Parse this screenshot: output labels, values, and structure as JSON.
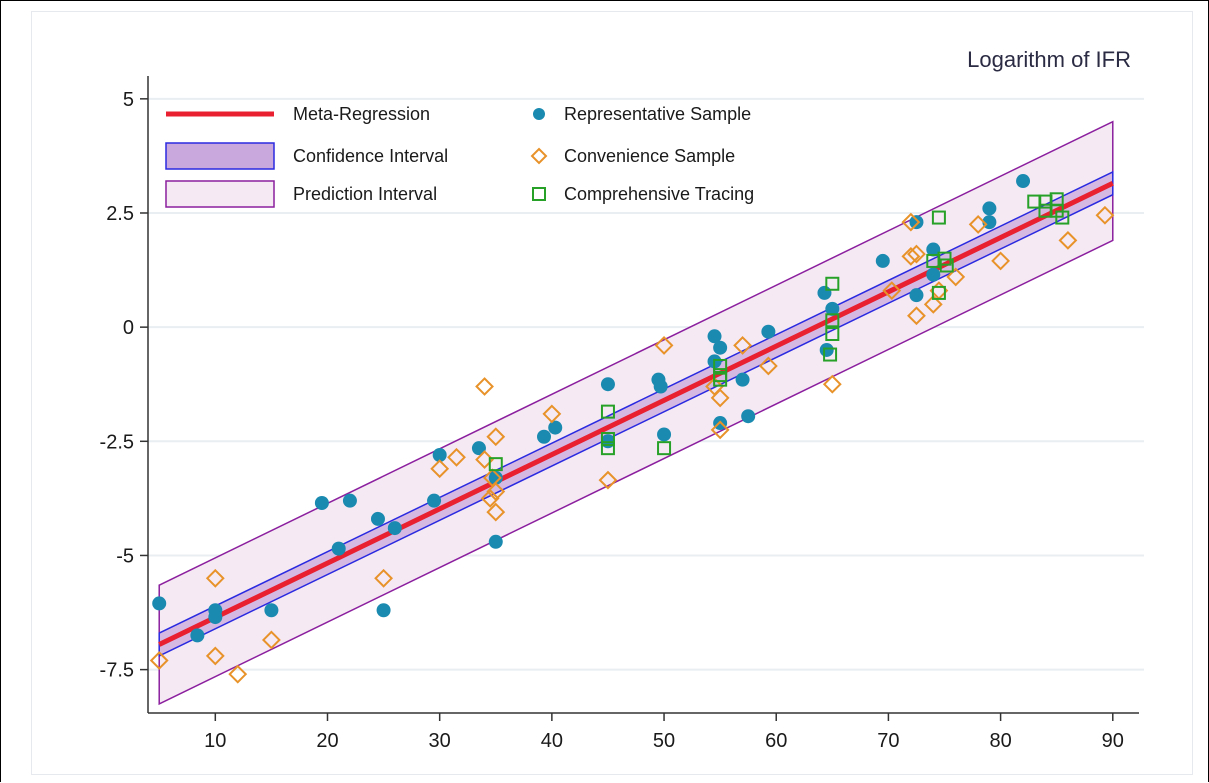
{
  "colors": {
    "regression_line": "#e8202f",
    "ci_fill": "#c9a8de",
    "ci_border": "#2a2ae0",
    "pi_fill": "#f5e9f4",
    "pi_border": "#8b1f9e",
    "representative": "#1a8ab0",
    "convenience": "#e8922a",
    "comprehensive": "#28a128",
    "grid": "#e8eef2",
    "axis": "#333333"
  },
  "chart_data": {
    "type": "scatter",
    "title": "Logarithm of IFR",
    "xlabel": "",
    "ylabel": "",
    "xlim": [
      4,
      91
    ],
    "ylim": [
      -8.45,
      5.5
    ],
    "x_ticks": [
      10,
      20,
      30,
      40,
      50,
      60,
      70,
      80,
      90
    ],
    "y_ticks": [
      5,
      2.5,
      0,
      -2.5,
      -5,
      -7.5
    ],
    "y_tick_labels": [
      "5",
      "2.5",
      "0",
      "-2.5",
      "-5",
      "-7.5"
    ],
    "grid": "horizontal",
    "legend": {
      "placement": "top-left",
      "entries": [
        {
          "label": "Meta-Regression",
          "kind": "line"
        },
        {
          "label": "Confidence Interval",
          "kind": "ci"
        },
        {
          "label": "Prediction Interval",
          "kind": "pi"
        },
        {
          "label": "Representative Sample",
          "kind": "circle"
        },
        {
          "label": "Convenience Sample",
          "kind": "diamond"
        },
        {
          "label": "Comprehensive Tracing",
          "kind": "square"
        }
      ]
    },
    "regression": {
      "x": [
        5,
        90
      ],
      "y": [
        -6.95,
        3.15
      ],
      "ci_upper": [
        -6.7,
        3.4
      ],
      "ci_lower": [
        -7.2,
        2.9
      ],
      "pi_upper": [
        -5.65,
        4.5
      ],
      "pi_lower": [
        -8.25,
        1.9
      ]
    },
    "series": [
      {
        "name": "Representative Sample",
        "marker": "circle",
        "points": [
          [
            5,
            -6.05
          ],
          [
            8.4,
            -6.75
          ],
          [
            10,
            -6.2
          ],
          [
            10,
            -6.35
          ],
          [
            15,
            -6.2
          ],
          [
            19.5,
            -3.85
          ],
          [
            21,
            -4.85
          ],
          [
            22,
            -3.8
          ],
          [
            24.5,
            -4.2
          ],
          [
            25,
            -6.2
          ],
          [
            26,
            -4.4
          ],
          [
            29.5,
            -3.8
          ],
          [
            30,
            -2.8
          ],
          [
            33.5,
            -2.65
          ],
          [
            35,
            -3.3
          ],
          [
            35,
            -4.7
          ],
          [
            39.3,
            -2.4
          ],
          [
            40.3,
            -2.2
          ],
          [
            45,
            -1.25
          ],
          [
            45,
            -2.5
          ],
          [
            49.5,
            -1.15
          ],
          [
            49.7,
            -1.3
          ],
          [
            50,
            -2.35
          ],
          [
            54.5,
            -0.2
          ],
          [
            55,
            -0.45
          ],
          [
            54.5,
            -0.75
          ],
          [
            55,
            -2.1
          ],
          [
            57,
            -1.15
          ],
          [
            57.5,
            -1.95
          ],
          [
            59.3,
            -0.1
          ],
          [
            64.3,
            0.75
          ],
          [
            64.5,
            -0.5
          ],
          [
            65,
            0.4
          ],
          [
            69.5,
            1.45
          ],
          [
            72.5,
            2.3
          ],
          [
            72.5,
            0.7
          ],
          [
            74,
            1.7
          ],
          [
            74,
            1.15
          ],
          [
            79,
            2.6
          ],
          [
            79,
            2.3
          ],
          [
            82,
            3.2
          ]
        ]
      },
      {
        "name": "Convenience Sample",
        "marker": "diamond",
        "points": [
          [
            5,
            -7.3
          ],
          [
            10,
            -5.5
          ],
          [
            10,
            -7.2
          ],
          [
            12,
            -7.6
          ],
          [
            15,
            -6.85
          ],
          [
            25,
            -5.5
          ],
          [
            30,
            -3.1
          ],
          [
            31.5,
            -2.85
          ],
          [
            34,
            -1.3
          ],
          [
            34,
            -2.9
          ],
          [
            34.5,
            -3.75
          ],
          [
            35,
            -2.4
          ],
          [
            35,
            -3.6
          ],
          [
            35,
            -4.05
          ],
          [
            34.7,
            -3.3
          ],
          [
            40,
            -1.9
          ],
          [
            45,
            -3.35
          ],
          [
            50,
            -0.4
          ],
          [
            54.5,
            -1.3
          ],
          [
            55,
            -1.55
          ],
          [
            55,
            -2.25
          ],
          [
            57,
            -0.4
          ],
          [
            59.3,
            -0.85
          ],
          [
            65,
            -1.25
          ],
          [
            70.3,
            0.8
          ],
          [
            72,
            2.3
          ],
          [
            72,
            1.55
          ],
          [
            72.5,
            1.6
          ],
          [
            72.5,
            0.25
          ],
          [
            74,
            0.5
          ],
          [
            74.5,
            0.8
          ],
          [
            76,
            1.1
          ],
          [
            78,
            2.25
          ],
          [
            80,
            1.45
          ],
          [
            86,
            1.9
          ],
          [
            89.3,
            2.45
          ]
        ]
      },
      {
        "name": "Comprehensive Tracing",
        "marker": "square",
        "points": [
          [
            35,
            -3.0
          ],
          [
            45,
            -1.85
          ],
          [
            45,
            -2.45
          ],
          [
            45,
            -2.65
          ],
          [
            50,
            -2.65
          ],
          [
            55,
            -0.85
          ],
          [
            55,
            -1.05
          ],
          [
            55,
            -1.15
          ],
          [
            65,
            0.95
          ],
          [
            65,
            0.15
          ],
          [
            65,
            -0.15
          ],
          [
            64.8,
            -0.6
          ],
          [
            74,
            1.45
          ],
          [
            74.5,
            2.4
          ],
          [
            74.5,
            0.75
          ],
          [
            75,
            1.5
          ],
          [
            75.2,
            1.35
          ],
          [
            83,
            2.75
          ],
          [
            84,
            2.75
          ],
          [
            84,
            2.55
          ],
          [
            85,
            2.8
          ],
          [
            85,
            2.55
          ],
          [
            85.5,
            2.4
          ]
        ]
      }
    ]
  }
}
